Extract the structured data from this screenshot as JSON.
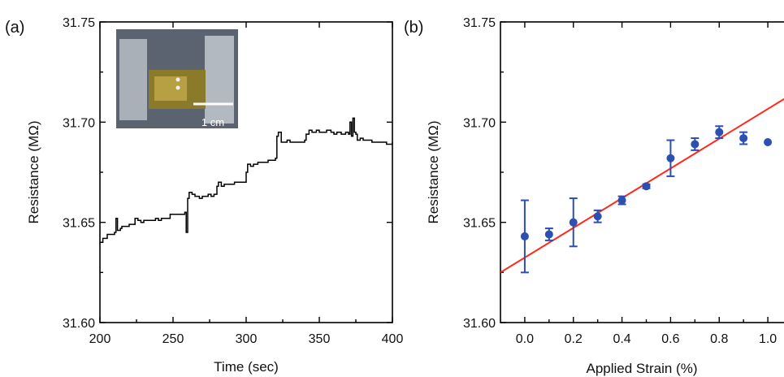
{
  "chart_data": [
    {
      "panel_label": "(a)",
      "type": "line",
      "xlabel": "Time (sec)",
      "ylabel": "Resistance (MΩ)",
      "xlim": [
        200,
        400
      ],
      "ylim": [
        31.6,
        31.75
      ],
      "xticks": [
        "200",
        "250",
        "300",
        "350",
        "400"
      ],
      "yticks": [
        "31.60",
        "31.65",
        "31.70",
        "31.75"
      ],
      "inset": {
        "description_label": "1 cm"
      },
      "line_color": "#000000",
      "x": [
        200,
        202,
        205,
        208,
        210,
        211,
        212,
        214,
        215,
        218,
        220,
        222,
        224,
        226,
        228,
        230,
        232,
        235,
        238,
        240,
        242,
        244,
        246,
        248,
        250,
        252,
        255,
        258,
        259,
        260,
        261,
        263,
        265,
        268,
        270,
        272,
        274,
        276,
        278,
        280,
        281,
        283,
        285,
        288,
        290,
        292,
        295,
        298,
        300,
        301,
        303,
        305,
        308,
        310,
        312,
        315,
        318,
        320,
        321,
        322,
        324,
        326,
        328,
        330,
        332,
        335,
        338,
        340,
        341,
        343,
        345,
        348,
        350,
        352,
        355,
        358,
        360,
        362,
        365,
        368,
        370,
        371,
        372,
        373,
        374,
        375,
        376,
        378,
        380,
        383,
        386,
        390,
        393,
        396,
        400
      ],
      "y": [
        31.64,
        31.642,
        31.644,
        31.644,
        31.645,
        31.652,
        31.646,
        31.647,
        31.648,
        31.648,
        31.649,
        31.649,
        31.652,
        31.651,
        31.65,
        31.651,
        31.651,
        31.651,
        31.652,
        31.651,
        31.652,
        31.652,
        31.652,
        31.654,
        31.654,
        31.654,
        31.654,
        31.655,
        31.645,
        31.662,
        31.665,
        31.664,
        31.663,
        31.662,
        31.663,
        31.663,
        31.664,
        31.663,
        31.664,
        31.668,
        31.67,
        31.668,
        31.669,
        31.669,
        31.669,
        31.67,
        31.67,
        31.67,
        31.675,
        31.679,
        31.678,
        31.679,
        31.68,
        31.68,
        31.68,
        31.681,
        31.681,
        31.682,
        31.693,
        31.695,
        31.69,
        31.69,
        31.691,
        31.69,
        31.69,
        31.69,
        31.69,
        31.691,
        31.694,
        31.696,
        31.695,
        31.696,
        31.695,
        31.695,
        31.696,
        31.695,
        31.694,
        31.695,
        31.694,
        31.695,
        31.694,
        31.7,
        31.693,
        31.702,
        31.695,
        31.694,
        31.691,
        31.692,
        31.691,
        31.691,
        31.69,
        31.69,
        31.69,
        31.689,
        31.69
      ]
    },
    {
      "panel_label": "(b)",
      "type": "scatter",
      "xlabel": "Applied Strain (%)",
      "ylabel": "Resistance (MΩ)",
      "xlim": [
        -0.1,
        1.1
      ],
      "ylim": [
        31.6,
        31.75
      ],
      "xticks": [
        "0.0",
        "0.2",
        "0.4",
        "0.6",
        "0.8",
        "1.0"
      ],
      "yticks": [
        "31.60",
        "31.65",
        "31.70",
        "31.75"
      ],
      "marker_color": "#2b4fb3",
      "fit_color": "#ff2a1a",
      "points": [
        {
          "x": 0.0,
          "y": 31.643,
          "err": 0.018
        },
        {
          "x": 0.1,
          "y": 31.644,
          "err": 0.003
        },
        {
          "x": 0.2,
          "y": 31.65,
          "err": 0.012
        },
        {
          "x": 0.3,
          "y": 31.653,
          "err": 0.003
        },
        {
          "x": 0.4,
          "y": 31.661,
          "err": 0.002
        },
        {
          "x": 0.5,
          "y": 31.668,
          "err": 0.001
        },
        {
          "x": 0.6,
          "y": 31.682,
          "err": 0.009
        },
        {
          "x": 0.7,
          "y": 31.689,
          "err": 0.003
        },
        {
          "x": 0.8,
          "y": 31.695,
          "err": 0.003
        },
        {
          "x": 0.9,
          "y": 31.692,
          "err": 0.003
        },
        {
          "x": 1.0,
          "y": 31.69,
          "err": 0.0
        }
      ],
      "fit": {
        "x": [
          -0.1,
          1.1
        ],
        "y": [
          31.625,
          31.714
        ]
      }
    }
  ]
}
